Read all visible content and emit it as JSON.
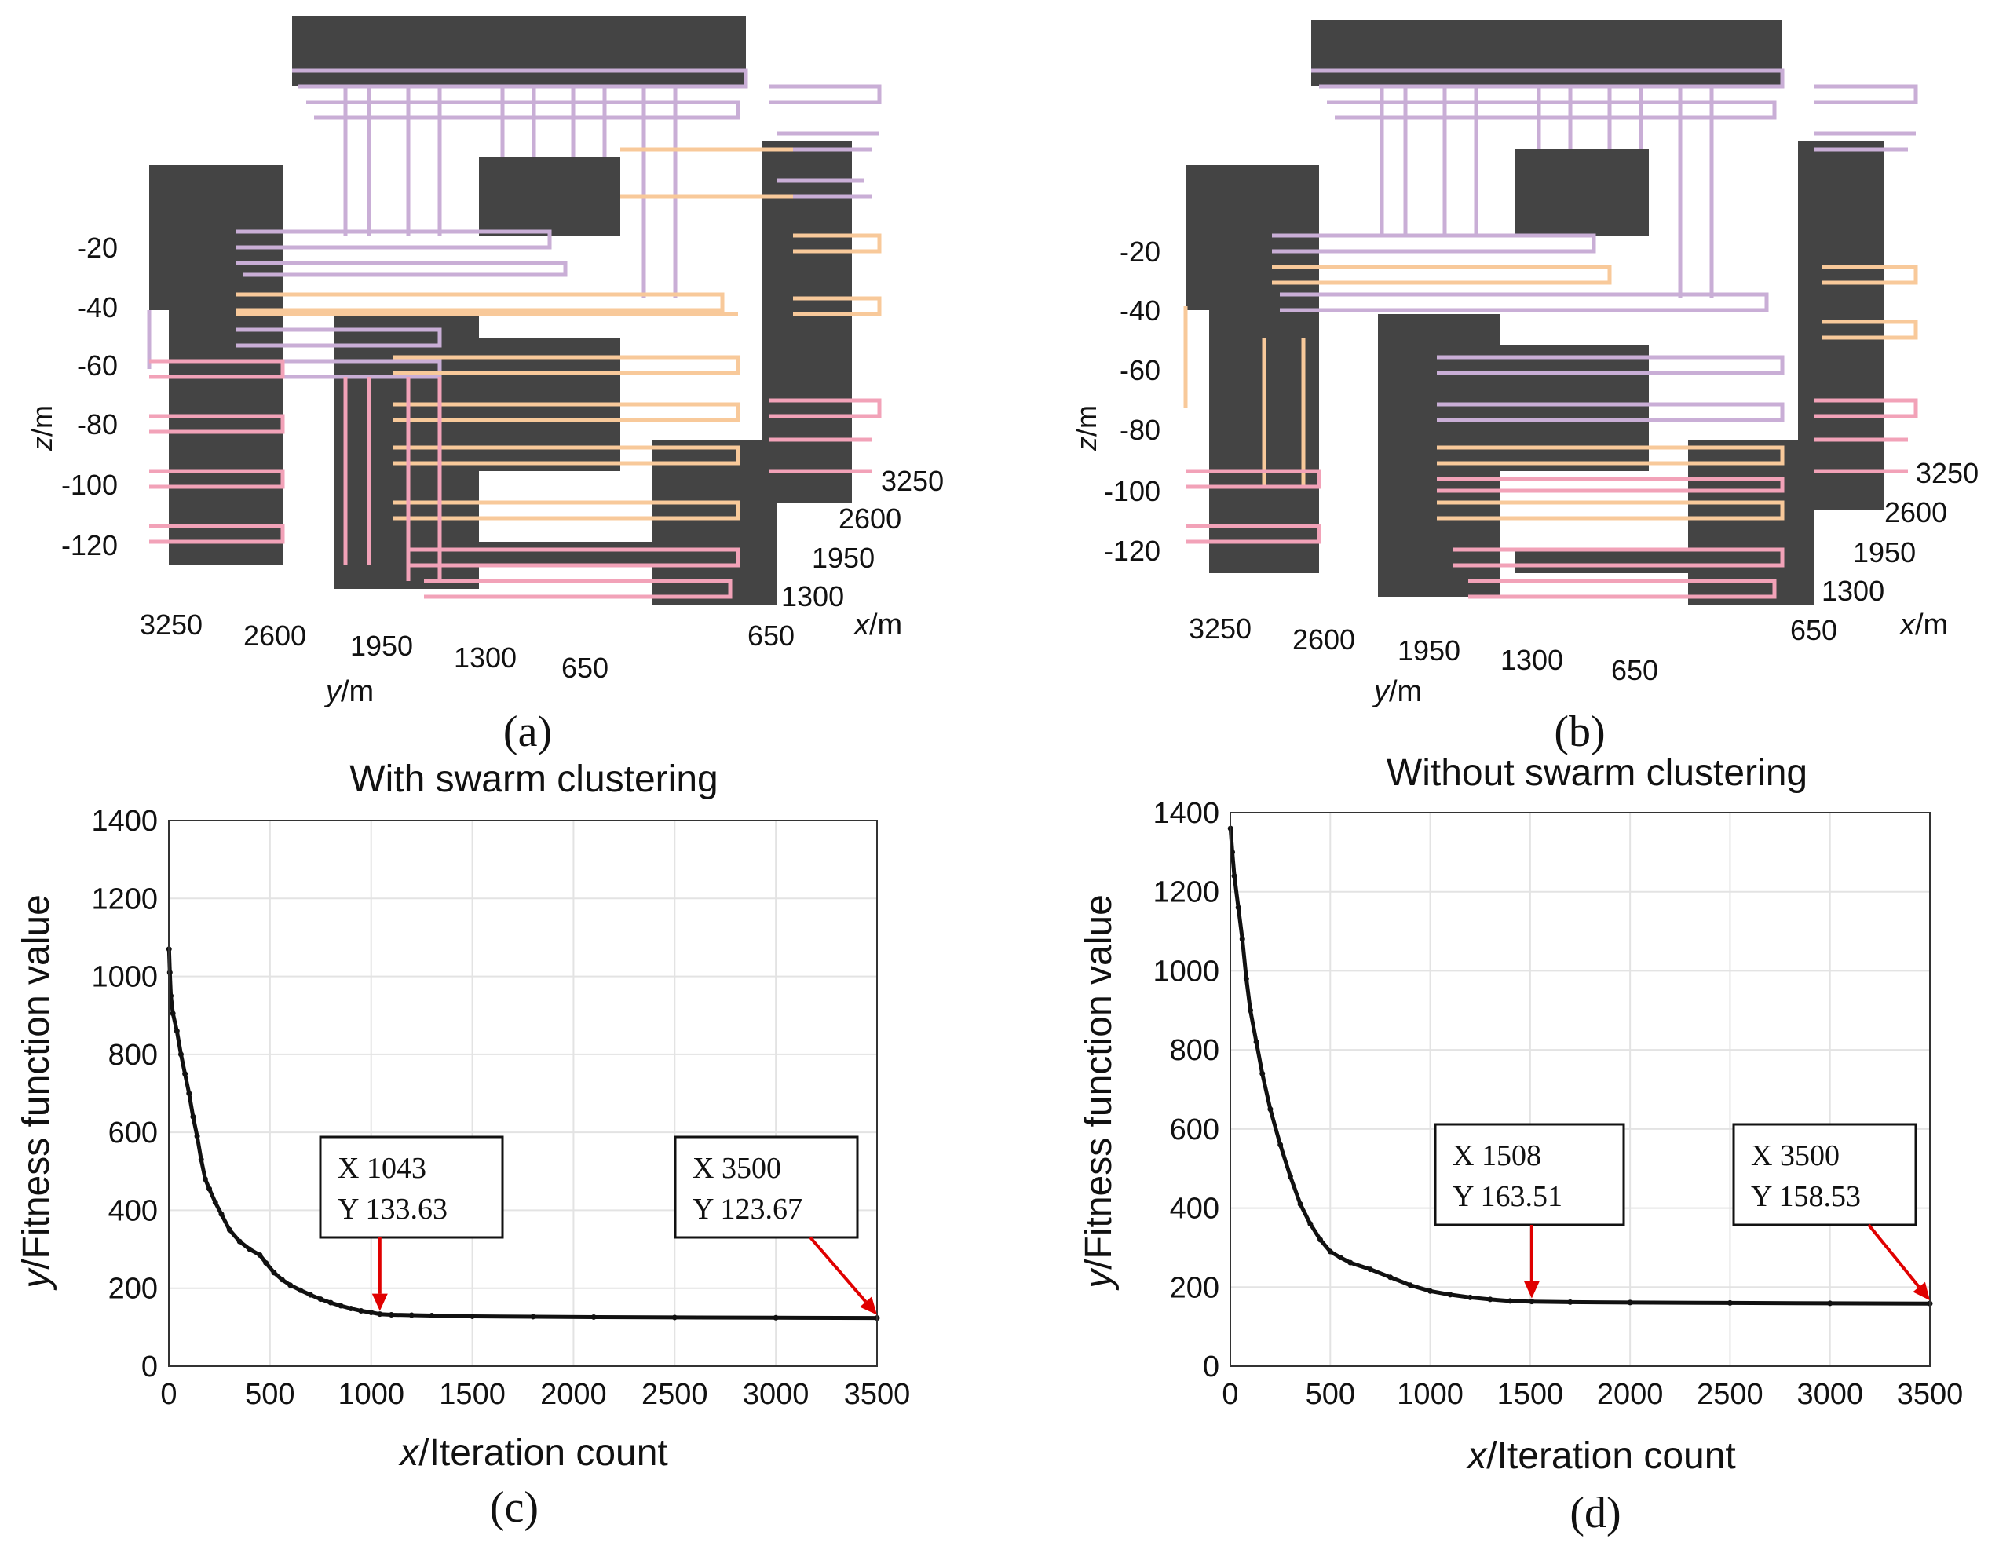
{
  "colors": {
    "obstacle": "#444444",
    "path_violet": "#c9aed6",
    "path_orange": "#f8c99a",
    "path_pink": "#f2a2b8",
    "curve": "#111111",
    "grid": "#e3e3e3",
    "arrow": "#e00000"
  },
  "panels": {
    "a": {
      "label": "(a)"
    },
    "b": {
      "label": "(b)"
    },
    "c": {
      "label": "(c)"
    },
    "d": {
      "label": "(d)"
    }
  },
  "view3d": {
    "z_label_var": "z",
    "z_label_unit": "/m",
    "y_label_var": "y",
    "y_label_unit": "/m",
    "x_label_var": "x",
    "x_label_unit": "/m",
    "z_ticks": [
      "-20",
      "-40",
      "-60",
      "-80",
      "-100",
      "-120"
    ],
    "y_ticks": [
      "3250",
      "2600",
      "1950",
      "1300",
      "650"
    ],
    "x_ticks": [
      "3250",
      "2600",
      "1950",
      "1300",
      "650"
    ]
  },
  "chart_data": [
    {
      "type": "line",
      "panel": "c",
      "title": "With swarm clustering",
      "xlabel_var": "x",
      "xlabel_text": "/Iteration count",
      "ylabel_var": "y",
      "ylabel_text": "/Fitness function value",
      "xlim": [
        0,
        3500
      ],
      "ylim": [
        0,
        1400
      ],
      "x_ticks": [
        "0",
        "500",
        "1000",
        "1500",
        "2000",
        "2500",
        "3000",
        "3500"
      ],
      "y_ticks": [
        "0",
        "200",
        "400",
        "600",
        "800",
        "1000",
        "1200",
        "1400"
      ],
      "grid": true,
      "points": [
        [
          1,
          1070
        ],
        [
          5,
          1010
        ],
        [
          10,
          950
        ],
        [
          20,
          905
        ],
        [
          40,
          860
        ],
        [
          60,
          800
        ],
        [
          80,
          750
        ],
        [
          100,
          700
        ],
        [
          120,
          640
        ],
        [
          140,
          590
        ],
        [
          160,
          530
        ],
        [
          180,
          480
        ],
        [
          200,
          455
        ],
        [
          230,
          420
        ],
        [
          260,
          390
        ],
        [
          300,
          350
        ],
        [
          350,
          320
        ],
        [
          400,
          300
        ],
        [
          450,
          285
        ],
        [
          480,
          265
        ],
        [
          520,
          240
        ],
        [
          560,
          222
        ],
        [
          600,
          208
        ],
        [
          650,
          195
        ],
        [
          700,
          183
        ],
        [
          750,
          172
        ],
        [
          800,
          163
        ],
        [
          850,
          155
        ],
        [
          900,
          148
        ],
        [
          950,
          142
        ],
        [
          1000,
          138
        ],
        [
          1043,
          133.63
        ],
        [
          1100,
          132
        ],
        [
          1200,
          131
        ],
        [
          1300,
          130
        ],
        [
          1500,
          128
        ],
        [
          1800,
          127
        ],
        [
          2100,
          126
        ],
        [
          2500,
          125
        ],
        [
          3000,
          124.3
        ],
        [
          3500,
          123.67
        ]
      ],
      "annotations": [
        {
          "x": 1043,
          "y": 133.63,
          "x_label": "X",
          "x_value": "1043",
          "y_label": "Y",
          "y_value": "133.63"
        },
        {
          "x": 3500,
          "y": 123.67,
          "x_label": "X",
          "x_value": "3500",
          "y_label": "Y",
          "y_value": "123.67"
        }
      ]
    },
    {
      "type": "line",
      "panel": "d",
      "title": "Without swarm clustering",
      "xlabel_var": "x",
      "xlabel_text": "/Iteration count",
      "ylabel_var": "y",
      "ylabel_text": "/Fitness function value",
      "xlim": [
        0,
        3500
      ],
      "ylim": [
        0,
        1400
      ],
      "x_ticks": [
        "0",
        "500",
        "1000",
        "1500",
        "2000",
        "2500",
        "3000",
        "3500"
      ],
      "y_ticks": [
        "0",
        "200",
        "400",
        "600",
        "800",
        "1000",
        "1200",
        "1400"
      ],
      "grid": true,
      "points": [
        [
          1,
          1360
        ],
        [
          10,
          1300
        ],
        [
          20,
          1240
        ],
        [
          40,
          1160
        ],
        [
          60,
          1080
        ],
        [
          80,
          980
        ],
        [
          100,
          900
        ],
        [
          130,
          820
        ],
        [
          160,
          740
        ],
        [
          200,
          650
        ],
        [
          250,
          560
        ],
        [
          300,
          480
        ],
        [
          350,
          410
        ],
        [
          400,
          360
        ],
        [
          450,
          320
        ],
        [
          500,
          290
        ],
        [
          550,
          275
        ],
        [
          600,
          262
        ],
        [
          700,
          245
        ],
        [
          800,
          225
        ],
        [
          900,
          205
        ],
        [
          1000,
          190
        ],
        [
          1100,
          181
        ],
        [
          1200,
          174
        ],
        [
          1300,
          169
        ],
        [
          1400,
          165
        ],
        [
          1508,
          163.51
        ],
        [
          1700,
          162
        ],
        [
          2000,
          161
        ],
        [
          2500,
          160
        ],
        [
          3000,
          159
        ],
        [
          3500,
          158.53
        ]
      ],
      "annotations": [
        {
          "x": 1508,
          "y": 163.51,
          "x_label": "X",
          "x_value": "1508",
          "y_label": "Y",
          "y_value": "163.51"
        },
        {
          "x": 3500,
          "y": 158.53,
          "x_label": "X",
          "x_value": "3500",
          "y_label": "Y",
          "y_value": "158.53"
        }
      ]
    }
  ]
}
